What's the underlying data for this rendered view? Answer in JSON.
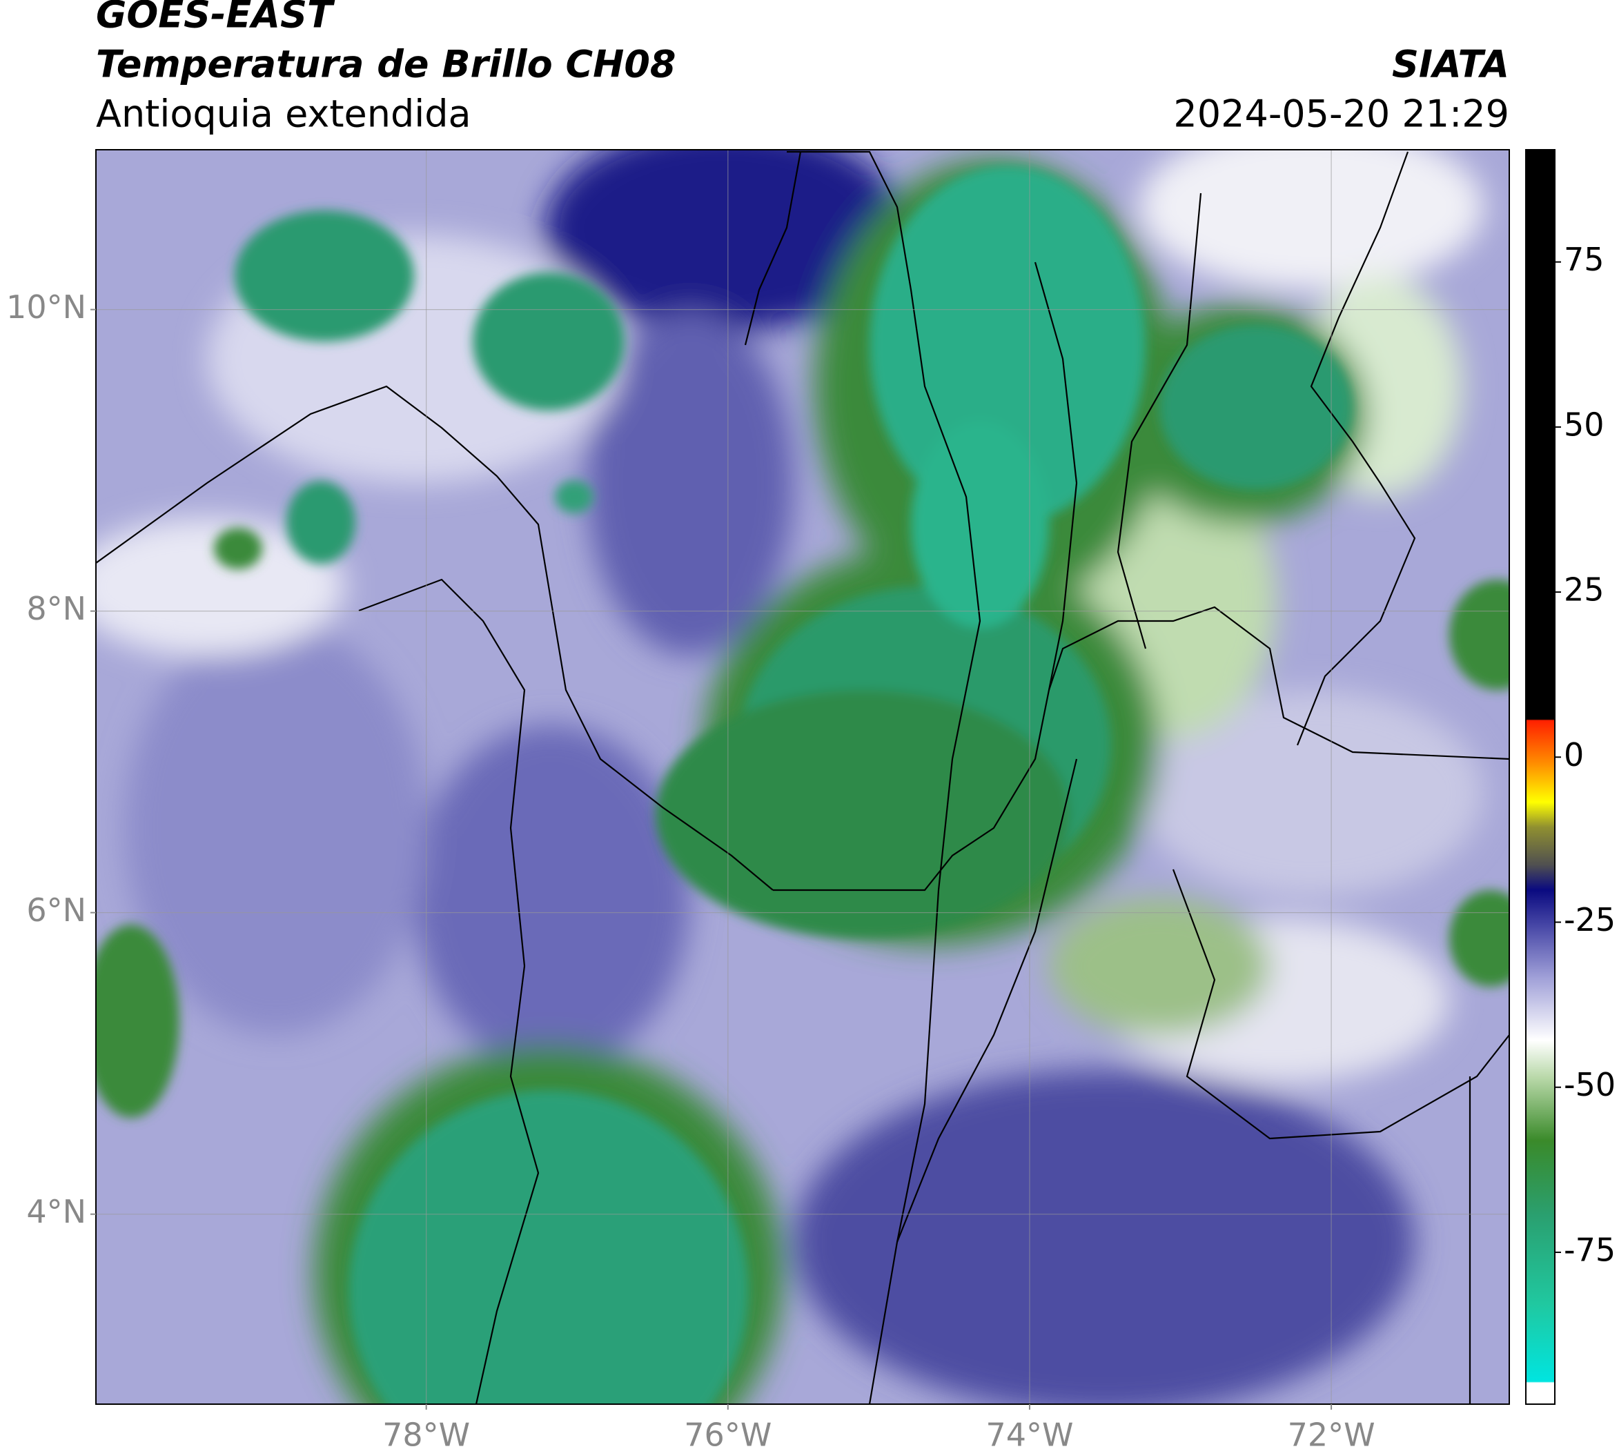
{
  "header": {
    "title": "GOES-EAST",
    "subtitle": "Temperatura de Brillo CH08",
    "region": "Antioquia extendida",
    "source": "SIATA",
    "datetime": "2024-05-20 21:29"
  },
  "map": {
    "xlim": [
      -80.19,
      -70.82
    ],
    "ylim": [
      2.74,
      11.06
    ],
    "grid": true,
    "xticks": [
      {
        "value": -78,
        "label": "78°W"
      },
      {
        "value": -76,
        "label": "76°W"
      },
      {
        "value": -74,
        "label": "74°W"
      },
      {
        "value": -72,
        "label": "72°W"
      }
    ],
    "yticks": [
      {
        "value": 10,
        "label": "10°N"
      },
      {
        "value": 8,
        "label": "8°N"
      },
      {
        "value": 6,
        "label": "6°N"
      },
      {
        "value": 4,
        "label": "4°N"
      }
    ]
  },
  "colorbar": {
    "lim": [
      -98,
      92
    ],
    "ticks": [
      75,
      50,
      25,
      0,
      -25,
      -50,
      -75
    ]
  }
}
